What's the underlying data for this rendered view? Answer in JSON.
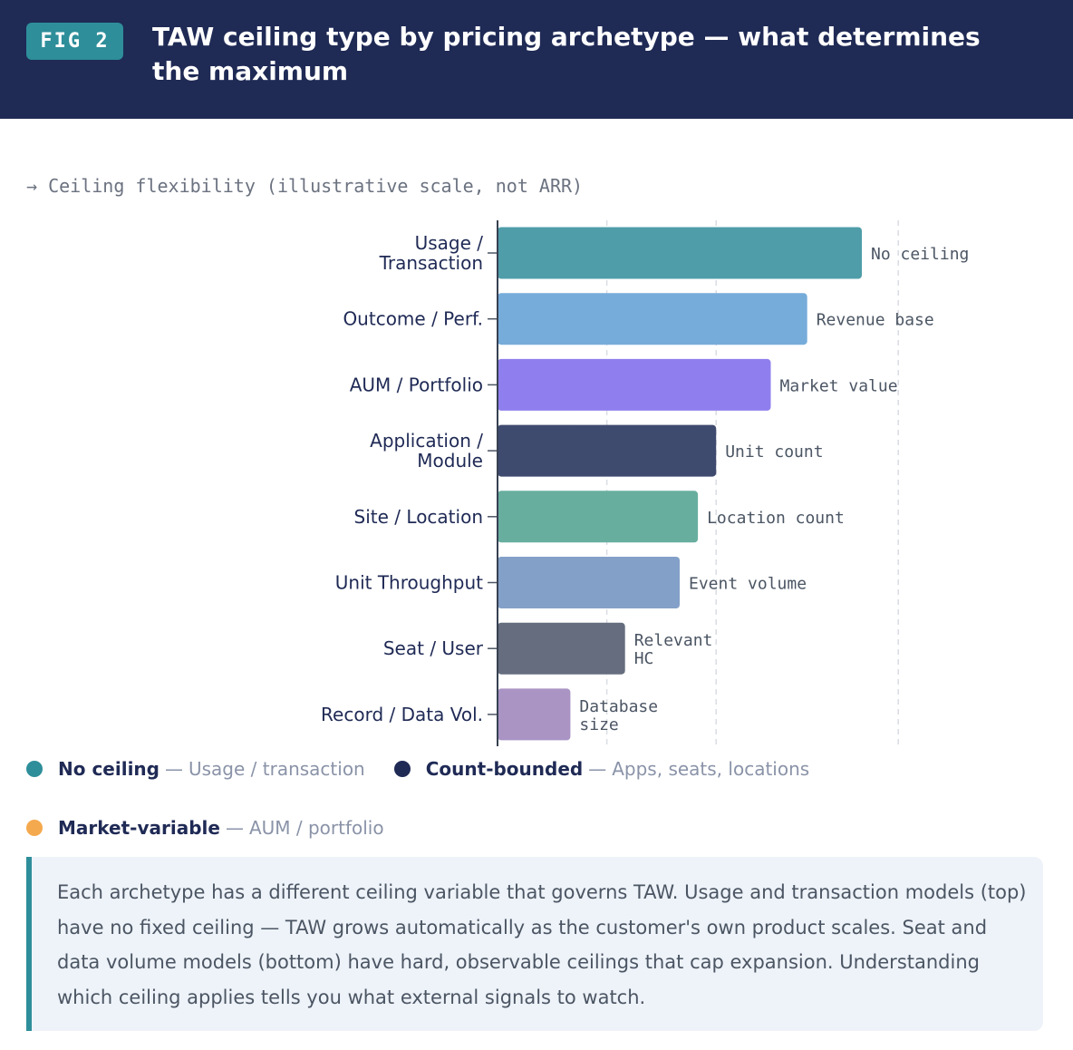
{
  "header": {
    "badge": "FIG 2",
    "title": "TAW ceiling type by pricing archetype — what determines the maximum"
  },
  "colors": {
    "header_bg": "#1f2a55",
    "accent": "#2e8e9a"
  },
  "chart_data": {
    "type": "bar",
    "orientation": "horizontal",
    "title": "TAW ceiling type by pricing archetype — what determines the maximum",
    "xlabel": "→ Ceiling flexibility (illustrative scale, not ARR)",
    "ylabel": "",
    "xlim": [
      0,
      110
    ],
    "grid": true,
    "categories": [
      [
        "Usage /",
        "Transaction"
      ],
      [
        "Outcome / Perf."
      ],
      [
        "AUM / Portfolio"
      ],
      [
        "Application /",
        "Module"
      ],
      [
        "Site / Location"
      ],
      [
        "Unit Throughput"
      ],
      [
        "Seat / User"
      ],
      [
        "Record / Data Vol."
      ]
    ],
    "values": [
      100,
      85,
      75,
      60,
      55,
      50,
      35,
      20
    ],
    "bar_labels": [
      [
        "No ceiling"
      ],
      [
        "Revenue base"
      ],
      [
        "Market value"
      ],
      [
        "Unit count"
      ],
      [
        "Location count"
      ],
      [
        "Event volume"
      ],
      [
        "Relevant",
        "HC"
      ],
      [
        "Database",
        "size"
      ]
    ],
    "colors": [
      "#4f9da9",
      "#76acda",
      "#8f7fee",
      "#3f4a6f",
      "#68ae9f",
      "#83a0c8",
      "#656d7e",
      "#a994c4"
    ]
  },
  "legend": [
    {
      "name": "No ceiling",
      "desc": "Usage / transaction",
      "color": "#2e8e9a"
    },
    {
      "name": "Count-bounded",
      "desc": "Apps, seats, locations",
      "color": "#1f2a55"
    },
    {
      "name": "Market-variable",
      "desc": "AUM / portfolio",
      "color": "#f5a94e"
    }
  ],
  "legend_separator": "—",
  "note": "Each archetype has a different ceiling variable that governs TAW. Usage and transaction models (top) have no fixed ceiling — TAW grows automatically as the customer's own product scales. Seat and data volume models (bottom) have hard, observable ceilings that cap expansion. Understanding which ceiling applies tells you what external signals to watch."
}
